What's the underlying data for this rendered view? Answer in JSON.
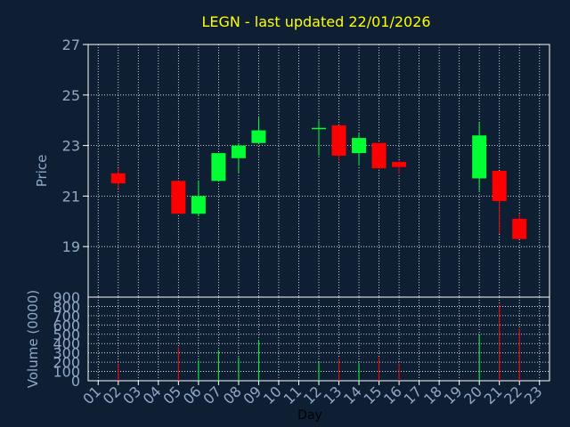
{
  "chart_data": {
    "type": "candlestick",
    "title": "LEGN - last updated 22/01/2026",
    "xlabel": "Day",
    "price_ylabel": "Price",
    "volume_ylabel": "Volume (0000)",
    "categories": [
      "01",
      "02",
      "03",
      "04",
      "05",
      "06",
      "07",
      "08",
      "09",
      "10",
      "11",
      "12",
      "13",
      "14",
      "15",
      "16",
      "17",
      "18",
      "19",
      "20",
      "21",
      "22",
      "23"
    ],
    "price_ylim": [
      17,
      27
    ],
    "price_ticks": [
      "19",
      "21",
      "23",
      "25",
      "27"
    ],
    "volume_ylim": [
      0,
      900
    ],
    "volume_ticks": [
      "0",
      "100",
      "200",
      "300",
      "400",
      "500",
      "600",
      "700",
      "800",
      "900"
    ],
    "grid": true,
    "up_color": "#00ff33",
    "down_color": "#ff0000",
    "candles": [
      {
        "day": "02",
        "open": 21.9,
        "high": 22.1,
        "low": 21.3,
        "close": 21.5,
        "volume": 180
      },
      {
        "day": "05",
        "open": 21.6,
        "high": 21.6,
        "low": 20.3,
        "close": 20.3,
        "volume": 360
      },
      {
        "day": "06",
        "open": 20.3,
        "high": 21.6,
        "low": 20.2,
        "close": 21.0,
        "volume": 220
      },
      {
        "day": "07",
        "open": 21.6,
        "high": 22.7,
        "low": 21.6,
        "close": 22.7,
        "volume": 330
      },
      {
        "day": "08",
        "open": 22.5,
        "high": 23.1,
        "low": 21.9,
        "close": 23.0,
        "volume": 250
      },
      {
        "day": "09",
        "open": 23.1,
        "high": 24.1,
        "low": 23.1,
        "close": 23.6,
        "volume": 440
      },
      {
        "day": "12",
        "open": 23.65,
        "high": 24.0,
        "low": 22.6,
        "close": 23.7,
        "volume": 200
      },
      {
        "day": "13",
        "open": 23.8,
        "high": 23.8,
        "low": 22.4,
        "close": 22.6,
        "volume": 240
      },
      {
        "day": "14",
        "open": 22.7,
        "high": 23.5,
        "low": 22.2,
        "close": 23.3,
        "volume": 190
      },
      {
        "day": "15",
        "open": 23.1,
        "high": 23.1,
        "low": 22.1,
        "close": 22.1,
        "volume": 250
      },
      {
        "day": "16",
        "open": 22.35,
        "high": 22.4,
        "low": 21.9,
        "close": 22.15,
        "volume": 180
      },
      {
        "day": "20",
        "open": 21.7,
        "high": 23.9,
        "low": 21.2,
        "close": 23.4,
        "volume": 490
      },
      {
        "day": "21",
        "open": 22.0,
        "high": 22.0,
        "low": 19.5,
        "close": 20.8,
        "volume": 820
      },
      {
        "day": "22",
        "open": 20.1,
        "high": 20.3,
        "low": 19.3,
        "close": 19.3,
        "volume": 560
      }
    ]
  }
}
